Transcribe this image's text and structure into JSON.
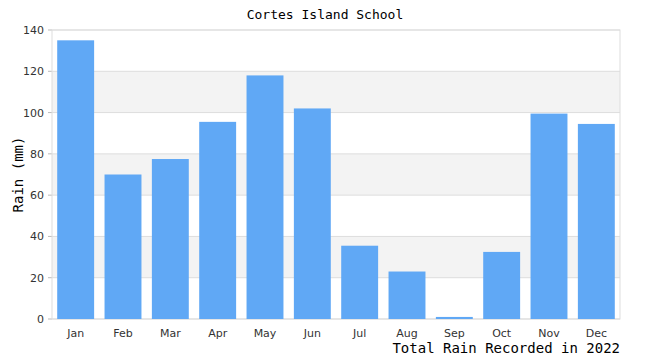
{
  "chart_data": {
    "type": "bar",
    "title": "Cortes Island School",
    "x_label": "Total Rain Recorded in 2022",
    "y_label": "Rain (mm)",
    "categories": [
      "Jan",
      "Feb",
      "Mar",
      "Apr",
      "May",
      "Jun",
      "Jul",
      "Aug",
      "Sep",
      "Oct",
      "Nov",
      "Dec"
    ],
    "values": [
      135,
      70,
      77.5,
      95.5,
      118,
      102,
      35.5,
      23,
      1,
      32.5,
      99.5,
      94.5
    ],
    "color": "#60a8f5",
    "ylim": [
      0,
      140
    ],
    "yticks": [
      0,
      20,
      40,
      60,
      80,
      100,
      120,
      140
    ],
    "grid": true
  }
}
